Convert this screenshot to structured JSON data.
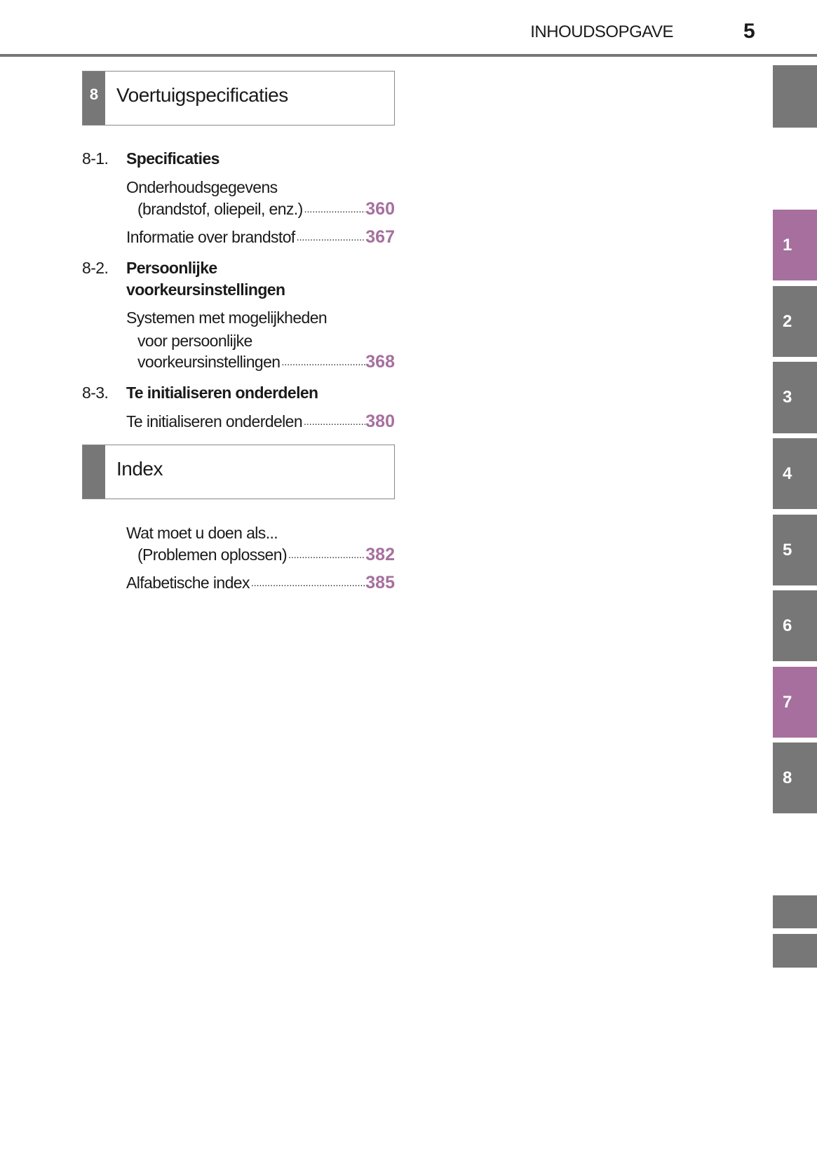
{
  "header": {
    "title": "INHOUDSOPGAVE",
    "page_number": "5"
  },
  "colors": {
    "accent": "#a66f9e",
    "gray": "#777777"
  },
  "side_tabs": [
    {
      "label": "",
      "active": false
    },
    {
      "label": "1",
      "active": true
    },
    {
      "label": "2",
      "active": false
    },
    {
      "label": "3",
      "active": false
    },
    {
      "label": "4",
      "active": false
    },
    {
      "label": "5",
      "active": false
    },
    {
      "label": "6",
      "active": false
    },
    {
      "label": "7",
      "active": true
    },
    {
      "label": "8",
      "active": false
    },
    {
      "label": "",
      "active": false
    },
    {
      "label": "",
      "active": false
    }
  ],
  "section8": {
    "number": "8",
    "title": "Voertuigspecificaties",
    "subsections": [
      {
        "number": "8-1.",
        "title": "Specificaties",
        "entries": [
          {
            "line1": "Onderhoudsgegevens",
            "line2": "(brandstof, oliepeil, enz.)",
            "page": "360"
          },
          {
            "line1": "Informatie over brandstof",
            "page": "367"
          }
        ]
      },
      {
        "number": "8-2.",
        "title_line1": "Persoonlijke",
        "title_line2": "voorkeursinstellingen",
        "entries": [
          {
            "line1": "Systemen met mogelijkheden",
            "line2": "voor persoonlijke",
            "line3": "voorkeursinstellingen",
            "page": "368"
          }
        ]
      },
      {
        "number": "8-3.",
        "title": "Te initialiseren onderdelen",
        "entries": [
          {
            "line1": "Te initialiseren onderdelen",
            "page": "380"
          }
        ]
      }
    ]
  },
  "index": {
    "title": "Index",
    "entries": [
      {
        "line1": "Wat moet u doen als...",
        "line2": "(Problemen oplossen)",
        "page": "382"
      },
      {
        "line1": "Alfabetische index",
        "page": "385"
      }
    ]
  }
}
